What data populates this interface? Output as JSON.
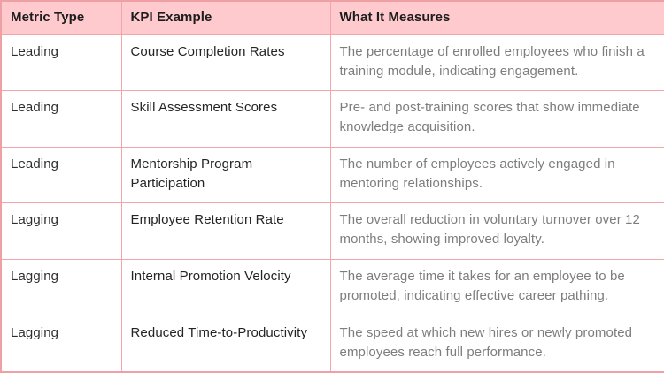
{
  "table": {
    "columns": [
      "Metric Type",
      "KPI Example",
      "What It Measures"
    ],
    "rows": [
      {
        "metric_type": "Leading",
        "kpi_example": "Course Completion Rates",
        "what_it_measures": "The percentage of enrolled employees who finish a training module, indicating engagement."
      },
      {
        "metric_type": "Leading",
        "kpi_example": "Skill Assessment Scores",
        "what_it_measures": "Pre- and post-training scores that show immediate knowledge acquisition."
      },
      {
        "metric_type": "Leading",
        "kpi_example": "Mentorship Program Participation",
        "what_it_measures": "The number of employees actively engaged in mentoring relationships."
      },
      {
        "metric_type": "Lagging",
        "kpi_example": "Employee Retention Rate",
        "what_it_measures": "The overall reduction in voluntary turnover over 12 months, showing improved loyalty."
      },
      {
        "metric_type": "Lagging",
        "kpi_example": "Internal Promotion Velocity",
        "what_it_measures": "The average time it takes for an employee to be promoted, indicating effective career pathing."
      },
      {
        "metric_type": "Lagging",
        "kpi_example": "Reduced Time-to-Productivity",
        "what_it_measures": "The speed at which new hires or newly promoted employees reach full performance."
      }
    ]
  },
  "colors": {
    "header_bg": "#ffcacd",
    "border": "#f2a6a9",
    "outer_border": "#efa0a4",
    "header_text": "#1c1c1c",
    "body_text": "#2e2e2e",
    "measure_text": "#7d7d7d",
    "row_bg": "#ffffff"
  }
}
